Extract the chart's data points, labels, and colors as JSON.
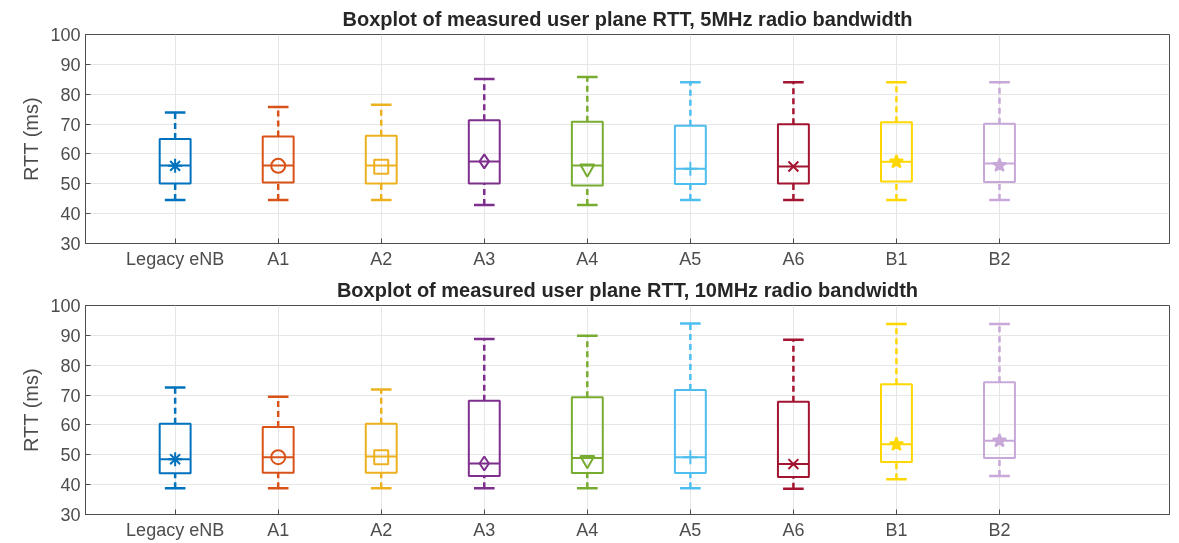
{
  "chart_data": [
    {
      "type": "box",
      "title": "Boxplot of measured user plane RTT, 5MHz radio bandwidth",
      "ylabel": "RTT (ms)",
      "categories": [
        "Legacy eNB",
        "A1",
        "A2",
        "A3",
        "A4",
        "A5",
        "A6",
        "B1",
        "B2"
      ],
      "colors": [
        "#0072bd",
        "#d95319",
        "#edb120",
        "#7e2f8e",
        "#77ac30",
        "#4dbeee",
        "#a2142f",
        "#ffd700",
        "#c8a8d8"
      ],
      "marker": [
        "asterisk",
        "circle",
        "square",
        "diamond",
        "inverted_triangle",
        "cross",
        "x",
        "star",
        "star"
      ],
      "boxes": [
        {
          "low": 44.6,
          "q1": 50.1,
          "median": 56.1,
          "q3": 65,
          "high": 73.9,
          "mean": 56
        },
        {
          "low": 44.6,
          "q1": 50.4,
          "median": 56.1,
          "q3": 65.8,
          "high": 75.7,
          "mean": 56
        },
        {
          "low": 44.6,
          "q1": 50.1,
          "median": 56.1,
          "q3": 66.1,
          "high": 76.5,
          "mean": 55.7
        },
        {
          "low": 42.9,
          "q1": 50.1,
          "median": 57.5,
          "q3": 71.3,
          "high": 85.1,
          "mean": 57.5
        },
        {
          "low": 42.9,
          "q1": 49.4,
          "median": 56.1,
          "q3": 70.8,
          "high": 85.8,
          "mean": 55.1
        },
        {
          "low": 44.6,
          "q1": 49.9,
          "median": 55,
          "q3": 69.4,
          "high": 84,
          "mean": 55
        },
        {
          "low": 44.6,
          "q1": 50.1,
          "median": 55.8,
          "q3": 69.9,
          "high": 84,
          "mean": 55.8
        },
        {
          "low": 44.6,
          "q1": 50.8,
          "median": 57.4,
          "q3": 70.6,
          "high": 84,
          "mean": 57.4
        },
        {
          "low": 44.6,
          "q1": 50.6,
          "median": 56.8,
          "q3": 70.1,
          "high": 84,
          "mean": 56.2
        }
      ],
      "ylim": [
        30,
        100
      ],
      "yticks": [
        30,
        40,
        50,
        60,
        70,
        80,
        90,
        100
      ],
      "grid": true
    },
    {
      "type": "box",
      "title": "Boxplot of measured user plane RTT, 10MHz radio bandwidth",
      "ylabel": "RTT (ms)",
      "categories": [
        "Legacy eNB",
        "A1",
        "A2",
        "A3",
        "A4",
        "A5",
        "A6",
        "B1",
        "B2"
      ],
      "colors": [
        "#0072bd",
        "#d95319",
        "#edb120",
        "#7e2f8e",
        "#77ac30",
        "#4dbeee",
        "#a2142f",
        "#ffd700",
        "#c8a8d8"
      ],
      "marker": [
        "asterisk",
        "circle",
        "square",
        "diamond",
        "inverted_triangle",
        "cross",
        "x",
        "star",
        "star"
      ],
      "boxes": [
        {
          "low": 38.8,
          "q1": 43.8,
          "median": 48.5,
          "q3": 60.4,
          "high": 72.5,
          "mean": 48.5
        },
        {
          "low": 38.8,
          "q1": 44,
          "median": 49.2,
          "q3": 59.3,
          "high": 69.4,
          "mean": 49.2
        },
        {
          "low": 38.8,
          "q1": 44,
          "median": 49.4,
          "q3": 60.4,
          "high": 71.9,
          "mean": 49.2
        },
        {
          "low": 38.8,
          "q1": 42.9,
          "median": 47.1,
          "q3": 68.1,
          "high": 88.8,
          "mean": 47.1
        },
        {
          "low": 38.8,
          "q1": 43.9,
          "median": 48.9,
          "q3": 69.3,
          "high": 89.9,
          "mean": 48.2
        },
        {
          "low": 38.8,
          "q1": 43.9,
          "median": 49.2,
          "q3": 71.7,
          "high": 94,
          "mean": 49.2
        },
        {
          "low": 38.6,
          "q1": 42.6,
          "median": 46.9,
          "q3": 67.8,
          "high": 88.5,
          "mean": 46.9
        },
        {
          "low": 41.8,
          "q1": 47.6,
          "median": 53.5,
          "q3": 73.6,
          "high": 93.8,
          "mean": 53.5
        },
        {
          "low": 42.9,
          "q1": 48.9,
          "median": 54.7,
          "q3": 74.3,
          "high": 93.8,
          "mean": 54.7
        }
      ],
      "ylim": [
        30,
        100
      ],
      "yticks": [
        30,
        40,
        50,
        60,
        70,
        80,
        90,
        100
      ],
      "grid": true
    }
  ]
}
